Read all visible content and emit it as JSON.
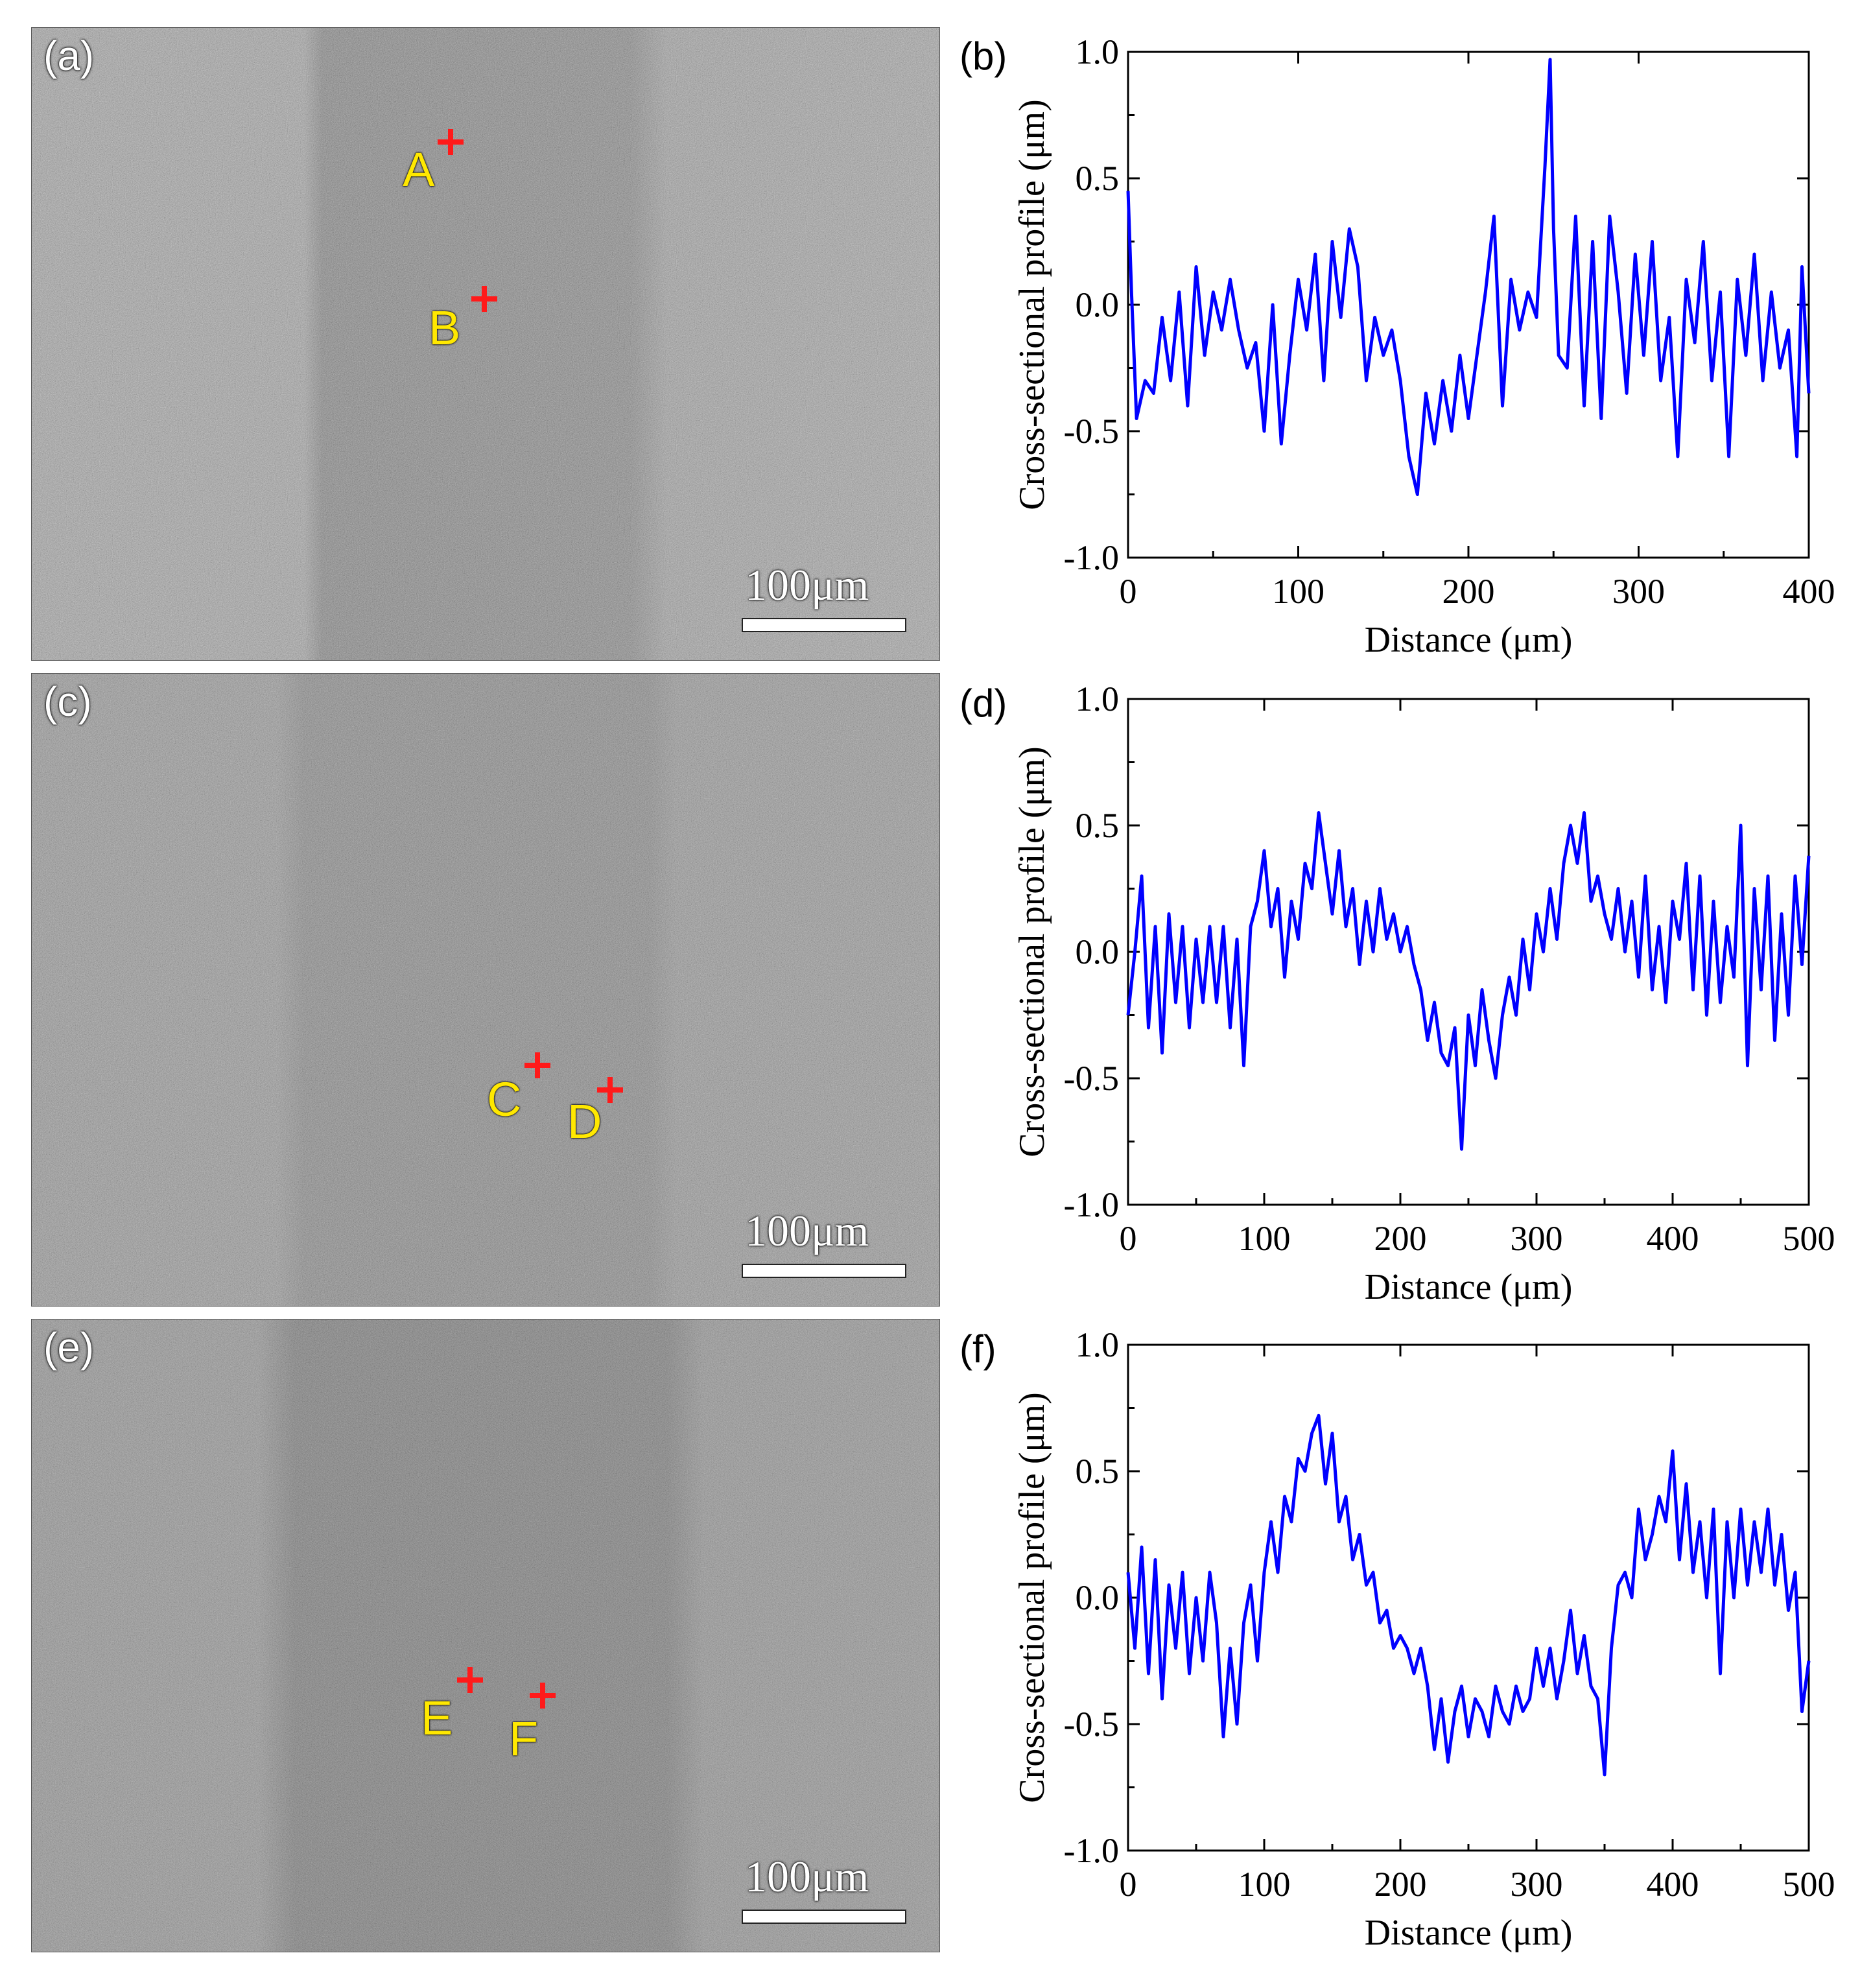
{
  "colors": {
    "line": "#0000ff",
    "marker_cross": "#ff1a1a",
    "marker_text": "#ffe800"
  },
  "sem_panels": [
    {
      "label": "(a)",
      "scale_label": "100μm",
      "markers": [
        {
          "label": "A"
        },
        {
          "label": "B"
        }
      ]
    },
    {
      "label": "(c)",
      "scale_label": "100μm",
      "markers": [
        {
          "label": "C"
        },
        {
          "label": "D"
        }
      ]
    },
    {
      "label": "(e)",
      "scale_label": "100μm",
      "markers": [
        {
          "label": "E"
        },
        {
          "label": "F"
        }
      ]
    }
  ],
  "chart_data": [
    {
      "panel": "(b)",
      "type": "line",
      "xlabel": "Distance (μm)",
      "ylabel": "Cross-sectional profile (μm)",
      "xlim": [
        0,
        400
      ],
      "ylim": [
        -1.0,
        1.0
      ],
      "xticks": [
        "0",
        "100",
        "200",
        "300",
        "400"
      ],
      "yticks": [
        "-1.0",
        "-0.5",
        "0.0",
        "0.5",
        "1.0"
      ],
      "series": [
        {
          "name": "profile",
          "x": [
            0,
            2,
            5,
            10,
            15,
            20,
            25,
            30,
            35,
            40,
            45,
            50,
            55,
            60,
            65,
            70,
            75,
            80,
            85,
            90,
            95,
            100,
            105,
            110,
            115,
            120,
            125,
            130,
            135,
            140,
            145,
            150,
            155,
            160,
            165,
            170,
            175,
            180,
            185,
            190,
            195,
            200,
            205,
            210,
            215,
            220,
            225,
            230,
            235,
            240,
            245,
            248,
            250,
            253,
            258,
            263,
            268,
            273,
            278,
            283,
            288,
            293,
            298,
            303,
            308,
            313,
            318,
            323,
            328,
            333,
            338,
            343,
            348,
            353,
            358,
            363,
            368,
            373,
            378,
            383,
            388,
            393,
            396,
            400
          ],
          "y": [
            0.45,
            0.05,
            -0.45,
            -0.3,
            -0.35,
            -0.05,
            -0.3,
            0.05,
            -0.4,
            0.15,
            -0.2,
            0.05,
            -0.1,
            0.1,
            -0.1,
            -0.25,
            -0.15,
            -0.5,
            0.0,
            -0.55,
            -0.2,
            0.1,
            -0.1,
            0.2,
            -0.3,
            0.25,
            -0.05,
            0.3,
            0.15,
            -0.3,
            -0.05,
            -0.2,
            -0.1,
            -0.3,
            -0.6,
            -0.75,
            -0.35,
            -0.55,
            -0.3,
            -0.5,
            -0.2,
            -0.45,
            -0.2,
            0.05,
            0.35,
            -0.4,
            0.1,
            -0.1,
            0.05,
            -0.05,
            0.55,
            0.97,
            0.3,
            -0.2,
            -0.25,
            0.35,
            -0.4,
            0.25,
            -0.45,
            0.35,
            0.05,
            -0.35,
            0.2,
            -0.2,
            0.25,
            -0.3,
            -0.05,
            -0.6,
            0.1,
            -0.15,
            0.25,
            -0.3,
            0.05,
            -0.6,
            0.1,
            -0.2,
            0.2,
            -0.3,
            0.05,
            -0.25,
            -0.1,
            -0.6,
            0.15,
            -0.35
          ]
        }
      ]
    },
    {
      "panel": "(d)",
      "type": "line",
      "xlabel": "Distance (μm)",
      "ylabel": "Cross-sectional profile (μm)",
      "xlim": [
        0,
        500
      ],
      "ylim": [
        -1.0,
        1.0
      ],
      "xticks": [
        "0",
        "100",
        "200",
        "300",
        "400",
        "500"
      ],
      "yticks": [
        "-1.0",
        "-0.5",
        "0.0",
        "0.5",
        "1.0"
      ],
      "series": [
        {
          "name": "profile",
          "x": [
            0,
            5,
            10,
            15,
            20,
            25,
            30,
            35,
            40,
            45,
            50,
            55,
            60,
            65,
            70,
            75,
            80,
            85,
            90,
            95,
            100,
            105,
            110,
            115,
            120,
            125,
            130,
            135,
            140,
            145,
            150,
            155,
            160,
            165,
            170,
            175,
            180,
            185,
            190,
            195,
            200,
            205,
            210,
            215,
            220,
            225,
            230,
            235,
            240,
            245,
            250,
            255,
            260,
            265,
            270,
            275,
            280,
            285,
            290,
            295,
            300,
            305,
            310,
            315,
            320,
            325,
            330,
            335,
            340,
            345,
            350,
            355,
            360,
            365,
            370,
            375,
            380,
            385,
            390,
            395,
            400,
            405,
            410,
            415,
            420,
            425,
            430,
            435,
            440,
            445,
            450,
            455,
            460,
            465,
            470,
            475,
            480,
            485,
            490,
            495,
            500
          ],
          "y": [
            -0.25,
            0.0,
            0.3,
            -0.3,
            0.1,
            -0.4,
            0.15,
            -0.2,
            0.1,
            -0.3,
            0.05,
            -0.2,
            0.1,
            -0.2,
            0.1,
            -0.3,
            0.05,
            -0.45,
            0.1,
            0.2,
            0.4,
            0.1,
            0.25,
            -0.1,
            0.2,
            0.05,
            0.35,
            0.25,
            0.55,
            0.35,
            0.15,
            0.4,
            0.1,
            0.25,
            -0.05,
            0.2,
            0.0,
            0.25,
            0.05,
            0.15,
            0.0,
            0.1,
            -0.05,
            -0.15,
            -0.35,
            -0.2,
            -0.4,
            -0.45,
            -0.3,
            -0.78,
            -0.25,
            -0.45,
            -0.15,
            -0.35,
            -0.5,
            -0.25,
            -0.1,
            -0.25,
            0.05,
            -0.15,
            0.15,
            0.0,
            0.25,
            0.05,
            0.35,
            0.5,
            0.35,
            0.55,
            0.2,
            0.3,
            0.15,
            0.05,
            0.25,
            0.0,
            0.2,
            -0.1,
            0.3,
            -0.15,
            0.1,
            -0.2,
            0.2,
            0.05,
            0.35,
            -0.15,
            0.3,
            -0.25,
            0.2,
            -0.2,
            0.1,
            -0.1,
            0.5,
            -0.45,
            0.25,
            -0.15,
            0.3,
            -0.35,
            0.15,
            -0.25,
            0.3,
            -0.05,
            0.38
          ]
        }
      ]
    },
    {
      "panel": "(f)",
      "type": "line",
      "xlabel": "Distance (μm)",
      "ylabel": "Cross-sectional profile (μm)",
      "xlim": [
        0,
        500
      ],
      "ylim": [
        -1.0,
        1.0
      ],
      "xticks": [
        "0",
        "100",
        "200",
        "300",
        "400",
        "500"
      ],
      "yticks": [
        "-1.0",
        "-0.5",
        "0.0",
        "0.5",
        "1.0"
      ],
      "series": [
        {
          "name": "profile",
          "x": [
            0,
            5,
            10,
            15,
            20,
            25,
            30,
            35,
            40,
            45,
            50,
            55,
            60,
            65,
            70,
            75,
            80,
            85,
            90,
            95,
            100,
            105,
            110,
            115,
            120,
            125,
            130,
            135,
            140,
            145,
            150,
            155,
            160,
            165,
            170,
            175,
            180,
            185,
            190,
            195,
            200,
            205,
            210,
            215,
            220,
            225,
            230,
            235,
            240,
            245,
            250,
            255,
            260,
            265,
            270,
            275,
            280,
            285,
            290,
            295,
            300,
            305,
            310,
            315,
            320,
            325,
            330,
            335,
            340,
            345,
            350,
            355,
            360,
            365,
            370,
            375,
            380,
            385,
            390,
            395,
            400,
            405,
            410,
            415,
            420,
            425,
            430,
            435,
            440,
            445,
            450,
            455,
            460,
            465,
            470,
            475,
            480,
            485,
            490,
            495,
            500
          ],
          "y": [
            0.1,
            -0.2,
            0.2,
            -0.3,
            0.15,
            -0.4,
            0.05,
            -0.2,
            0.1,
            -0.3,
            0.0,
            -0.25,
            0.1,
            -0.1,
            -0.55,
            -0.2,
            -0.5,
            -0.1,
            0.05,
            -0.25,
            0.1,
            0.3,
            0.1,
            0.4,
            0.3,
            0.55,
            0.5,
            0.65,
            0.72,
            0.45,
            0.65,
            0.3,
            0.4,
            0.15,
            0.25,
            0.05,
            0.1,
            -0.1,
            -0.05,
            -0.2,
            -0.15,
            -0.2,
            -0.3,
            -0.2,
            -0.35,
            -0.6,
            -0.4,
            -0.65,
            -0.45,
            -0.35,
            -0.55,
            -0.4,
            -0.45,
            -0.55,
            -0.35,
            -0.45,
            -0.5,
            -0.35,
            -0.45,
            -0.4,
            -0.2,
            -0.35,
            -0.2,
            -0.4,
            -0.25,
            -0.05,
            -0.3,
            -0.15,
            -0.35,
            -0.4,
            -0.7,
            -0.2,
            0.05,
            0.1,
            0.0,
            0.35,
            0.15,
            0.25,
            0.4,
            0.3,
            0.58,
            0.15,
            0.45,
            0.1,
            0.3,
            0.0,
            0.35,
            -0.3,
            0.3,
            0.0,
            0.35,
            0.05,
            0.3,
            0.1,
            0.35,
            0.05,
            0.25,
            -0.05,
            0.1,
            -0.45,
            -0.25
          ]
        }
      ]
    }
  ]
}
